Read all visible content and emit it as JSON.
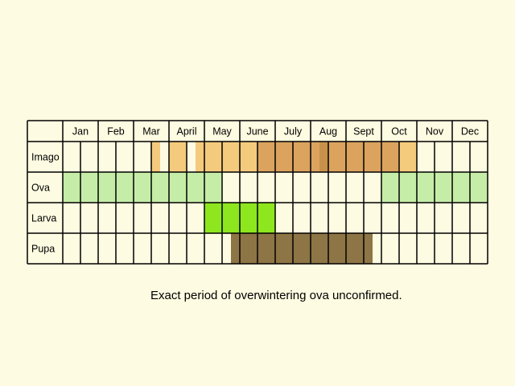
{
  "months": [
    "Jan",
    "Feb",
    "Mar",
    "April",
    "May",
    "June",
    "July",
    "Aug",
    "Sept",
    "Oct",
    "Nov",
    "Dec"
  ],
  "colors": {
    "background": "#fdfbe1",
    "grid": "#000000",
    "imago_light": "#f4ca7c",
    "imago_mid": "#dba35e",
    "imago_dark": "#c8914a",
    "ova": "#c5eda7",
    "larva": "#8ee61e",
    "pupa": "#8e7545"
  },
  "stages": [
    {
      "label": "Imago",
      "segments": [
        {
          "start": 2.5,
          "end": 2.75,
          "color": "imago_light"
        },
        {
          "start": 3.0,
          "end": 3.5,
          "color": "imago_light"
        },
        {
          "start": 3.75,
          "end": 5.5,
          "color": "imago_light"
        },
        {
          "start": 5.5,
          "end": 5.75,
          "color": "imago_mid"
        },
        {
          "start": 5.75,
          "end": 7.25,
          "color": "imago_mid"
        },
        {
          "start": 7.25,
          "end": 7.5,
          "color": "imago_dark"
        },
        {
          "start": 7.5,
          "end": 9.5,
          "color": "imago_mid"
        },
        {
          "start": 9.5,
          "end": 10.0,
          "color": "imago_light"
        }
      ]
    },
    {
      "label": "Ova",
      "segments": [
        {
          "start": 0,
          "end": 4.5,
          "color": "ova"
        },
        {
          "start": 9.0,
          "end": 12.0,
          "color": "ova"
        }
      ]
    },
    {
      "label": "Larva",
      "segments": [
        {
          "start": 4.0,
          "end": 6.0,
          "color": "larva"
        }
      ]
    },
    {
      "label": "Pupa",
      "segments": [
        {
          "start": 4.75,
          "end": 8.75,
          "color": "pupa"
        }
      ]
    }
  ],
  "caption": "Exact period of overwintering ova unconfirmed."
}
